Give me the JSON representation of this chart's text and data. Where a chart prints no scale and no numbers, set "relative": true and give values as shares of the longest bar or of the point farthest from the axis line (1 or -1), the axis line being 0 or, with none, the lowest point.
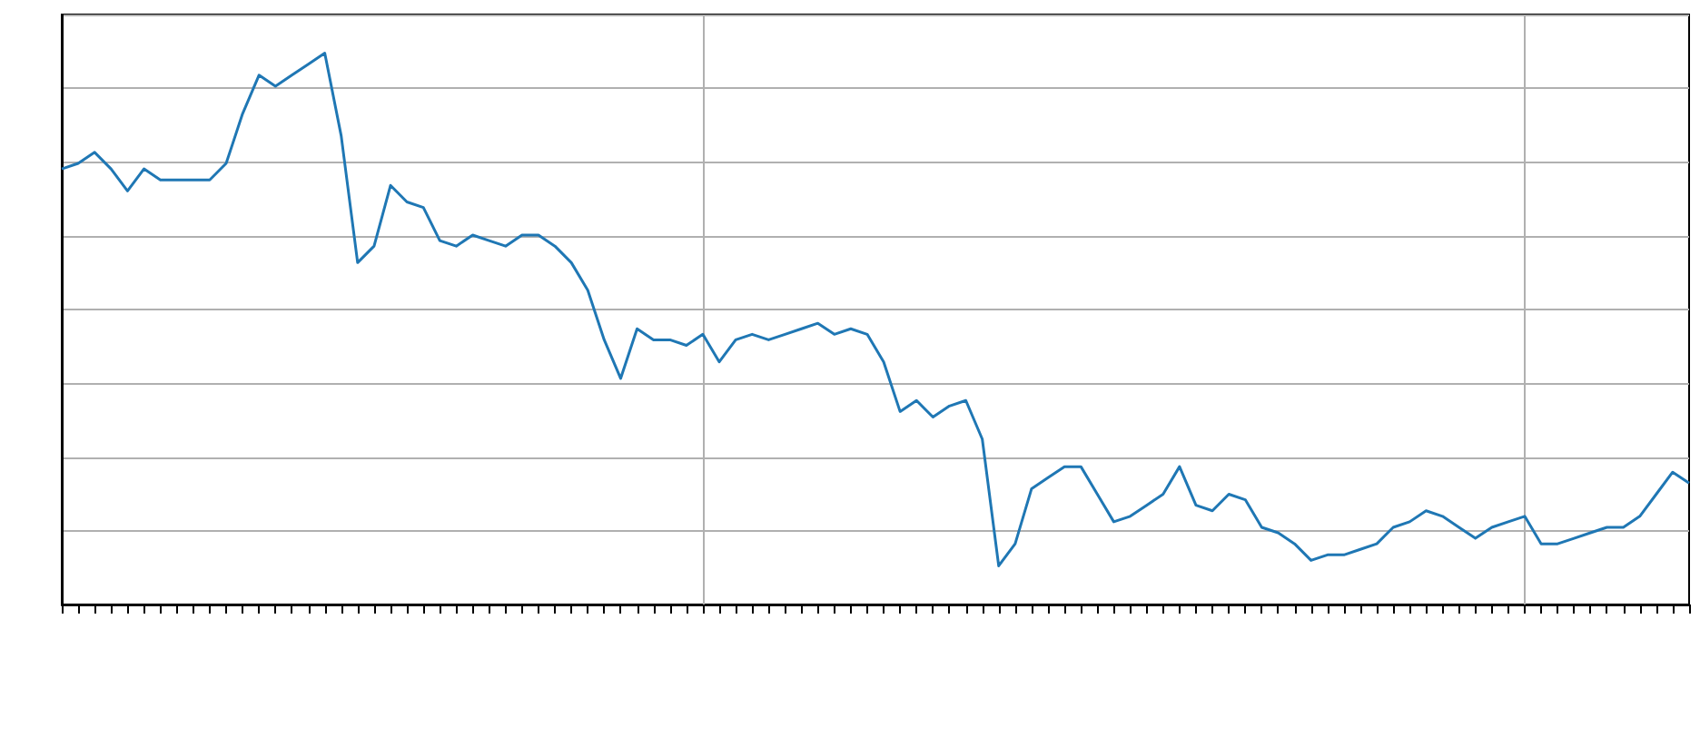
{
  "chart_data": {
    "type": "line",
    "relative": true,
    "color": "#1f77b4",
    "grid": true,
    "line_style": "solid",
    "categories": [
      null,
      null,
      null,
      null,
      null,
      null,
      null,
      null,
      null,
      null,
      null,
      null,
      null,
      null,
      null,
      null,
      null,
      null,
      null,
      null,
      null,
      null,
      null,
      null,
      null,
      null,
      null,
      null,
      null,
      null,
      null,
      null,
      null,
      null,
      null,
      null,
      null,
      null,
      null,
      null,
      null,
      null,
      null,
      null,
      null,
      null,
      null,
      null,
      null,
      null,
      null,
      null,
      null,
      null,
      null,
      null,
      null,
      null,
      null,
      null,
      null,
      null,
      null,
      null,
      null,
      null,
      null,
      null,
      null,
      null,
      null,
      null,
      null,
      null,
      null,
      null,
      null,
      null,
      null,
      null,
      null,
      null,
      null,
      null,
      null,
      null,
      null,
      null,
      null,
      null,
      null,
      null,
      null,
      null,
      null,
      null,
      null,
      null,
      null,
      null
    ],
    "values": [
      0.79,
      0.8,
      0.82,
      0.79,
      0.75,
      0.79,
      0.77,
      0.77,
      0.77,
      0.77,
      0.8,
      0.89,
      0.96,
      0.94,
      0.96,
      0.98,
      1.0,
      0.85,
      0.62,
      0.65,
      0.76,
      0.73,
      0.72,
      0.66,
      0.65,
      0.67,
      0.66,
      0.65,
      0.67,
      0.67,
      0.65,
      0.62,
      0.57,
      0.48,
      0.41,
      0.5,
      0.48,
      0.48,
      0.47,
      0.49,
      0.44,
      0.48,
      0.49,
      0.48,
      0.49,
      0.5,
      0.51,
      0.49,
      0.5,
      0.49,
      0.44,
      0.35,
      0.37,
      0.34,
      0.36,
      0.37,
      0.3,
      0.07,
      0.11,
      0.21,
      0.23,
      0.25,
      0.25,
      0.2,
      0.15,
      0.16,
      0.18,
      0.2,
      0.25,
      0.18,
      0.17,
      0.2,
      0.19,
      0.14,
      0.13,
      0.11,
      0.08,
      0.09,
      0.09,
      0.1,
      0.11,
      0.14,
      0.15,
      0.17,
      0.16,
      0.14,
      0.12,
      0.14,
      0.15,
      0.16,
      0.11,
      0.11,
      0.12,
      0.13,
      0.14,
      0.14,
      0.16,
      0.2,
      0.24,
      0.22
    ]
  }
}
